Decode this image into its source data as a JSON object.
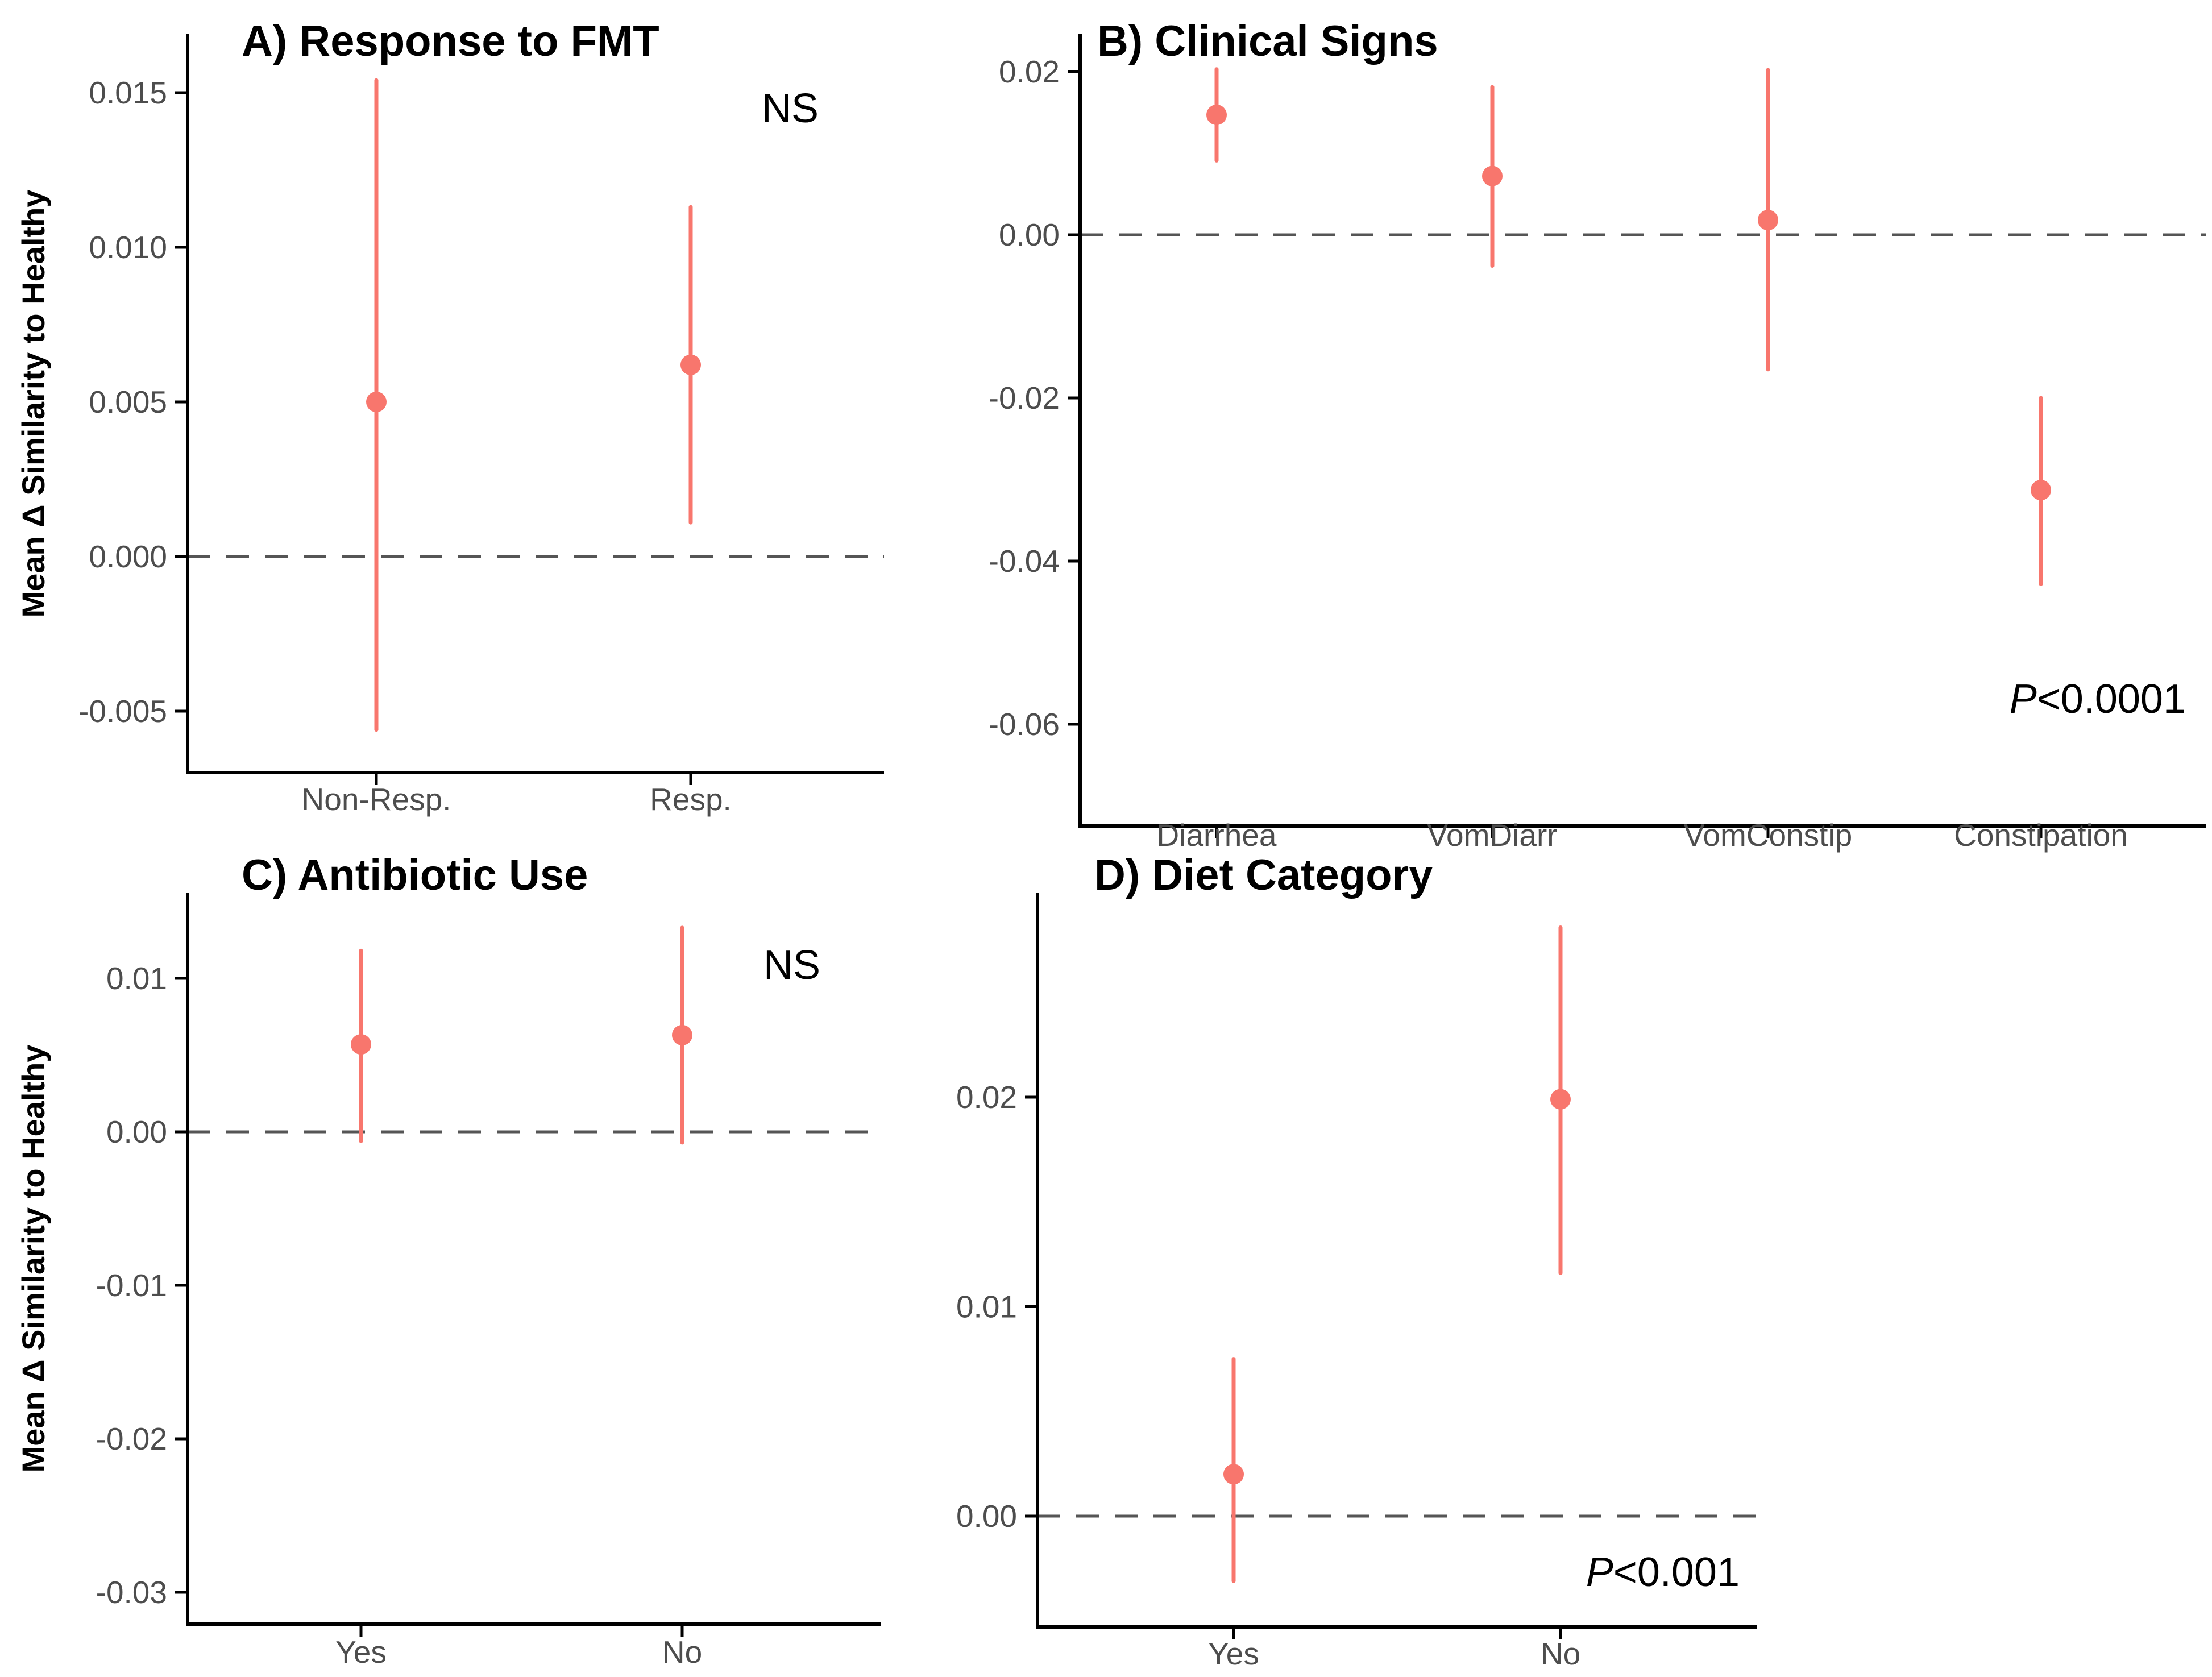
{
  "chart_data": {
    "type": "scatter",
    "shared_y_axis_title": "Mean Δ Similarity to Healthy",
    "point_color": "#F8766D",
    "error_bar_color": "#F8766D",
    "zero_line_color": "#555555",
    "axis_color": "#000000",
    "grid": false,
    "legend": "none",
    "panels": [
      {
        "id": "A",
        "title": "A) Response to FMT",
        "annotation": {
          "italic": "",
          "text": "NS"
        },
        "ylabel": "Mean Δ Similarity to Healthy",
        "categories": [
          "Non-Resp.",
          "Resp."
        ],
        "ytick_labels": [
          "0.015",
          "0.010",
          "0.005",
          "0.000",
          "-0.005"
        ],
        "ytick_values": [
          0.015,
          0.01,
          0.005,
          0.0,
          -0.005
        ],
        "ylim": [
          -0.007,
          0.0169
        ],
        "zero_line": true,
        "series": [
          {
            "category": "Non-Resp.",
            "mean": 0.005,
            "ci_low": -0.0056,
            "ci_high": 0.0154
          },
          {
            "category": "Resp.",
            "mean": 0.0062,
            "ci_low": 0.0011,
            "ci_high": 0.0113
          }
        ]
      },
      {
        "id": "B",
        "title": "B) Clinical Signs",
        "annotation": {
          "italic": "P",
          "text": "<0.0001"
        },
        "ylabel": "",
        "categories": [
          "Diarrhea",
          "VomDiarr",
          "VomConstip",
          "Constipation"
        ],
        "ytick_labels": [
          "0.02",
          "0.00",
          "-0.02",
          "-0.04",
          "-0.06"
        ],
        "ytick_values": [
          0.02,
          0.0,
          -0.02,
          -0.04,
          -0.06
        ],
        "ylim": [
          -0.0725,
          0.0246
        ],
        "zero_line": true,
        "series": [
          {
            "category": "Diarrhea",
            "mean": 0.0147,
            "ci_low": 0.0091,
            "ci_high": 0.0203
          },
          {
            "category": "VomDiarr",
            "mean": 0.0072,
            "ci_low": -0.0038,
            "ci_high": 0.0181
          },
          {
            "category": "VomConstip",
            "mean": 0.0018,
            "ci_low": -0.0165,
            "ci_high": 0.0202
          },
          {
            "category": "Constipation",
            "mean": -0.0313,
            "ci_low": -0.0428,
            "ci_high": -0.02
          }
        ]
      },
      {
        "id": "C",
        "title": "C) Antibiotic Use",
        "annotation": {
          "italic": "",
          "text": "NS"
        },
        "ylabel": "Mean Δ Similarity to Healthy",
        "categories": [
          "Yes",
          "No"
        ],
        "ytick_labels": [
          "0.01",
          "0.00",
          "-0.01",
          "-0.02",
          "-0.03"
        ],
        "ytick_values": [
          0.01,
          0.0,
          -0.01,
          -0.02,
          -0.03
        ],
        "ylim": [
          -0.0321,
          0.0156
        ],
        "zero_line": true,
        "series": [
          {
            "category": "Yes",
            "mean": 0.0057,
            "ci_low": -0.0006,
            "ci_high": 0.0118
          },
          {
            "category": "No",
            "mean": 0.0063,
            "ci_low": -0.0007,
            "ci_high": 0.0133
          }
        ]
      },
      {
        "id": "D",
        "title": "D) Diet Category",
        "annotation": {
          "italic": "P",
          "text": "<0.001"
        },
        "ylabel": "",
        "categories": [
          "Yes",
          "No"
        ],
        "ytick_labels": [
          "0.02",
          "0.01",
          "0.00"
        ],
        "ytick_values": [
          0.02,
          0.01,
          0.0
        ],
        "ylim": [
          -0.0053,
          0.0297
        ],
        "zero_line": true,
        "series": [
          {
            "category": "Yes",
            "mean": 0.002,
            "ci_low": -0.0031,
            "ci_high": 0.0075
          },
          {
            "category": "No",
            "mean": 0.0199,
            "ci_low": 0.0116,
            "ci_high": 0.0281
          }
        ]
      }
    ]
  }
}
